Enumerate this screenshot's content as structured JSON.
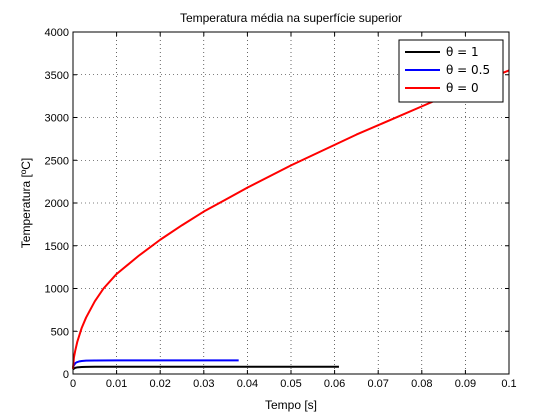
{
  "chart_data": {
    "type": "line",
    "title": "Temperatura média na superfície superior",
    "xlabel": "Tempo [s]",
    "ylabel": "Temperatura [ºC]",
    "xlim": [
      0,
      0.1
    ],
    "ylim": [
      0,
      4000
    ],
    "xticks": [
      0,
      0.01,
      0.02,
      0.03,
      0.04,
      0.05,
      0.06,
      0.07,
      0.08,
      0.09,
      0.1
    ],
    "xtick_labels": [
      "0",
      "0.01",
      "0.02",
      "0.03",
      "0.04",
      "0.05",
      "0.06",
      "0.07",
      "0.08",
      "0.09",
      "0.1"
    ],
    "yticks": [
      0,
      500,
      1000,
      1500,
      2000,
      2500,
      3000,
      3500,
      4000
    ],
    "ytick_labels": [
      "0",
      "500",
      "1000",
      "1500",
      "2000",
      "2500",
      "3000",
      "3500",
      "4000"
    ],
    "grid": true,
    "legend_position": "top-right",
    "series": [
      {
        "name": "θ = 1",
        "color": "#000000",
        "x": [
          0,
          0.0005,
          0.001,
          0.002,
          0.003,
          0.005,
          0.01,
          0.02,
          0.03,
          0.04,
          0.05,
          0.061
        ],
        "y": [
          55,
          72,
          78,
          82,
          84,
          85,
          85,
          85,
          85,
          85,
          85,
          85
        ]
      },
      {
        "name": "θ = 0.5",
        "color": "#0000ff",
        "x": [
          0,
          0.0003,
          0.0006,
          0.001,
          0.0015,
          0.002,
          0.003,
          0.005,
          0.01,
          0.02,
          0.03,
          0.038
        ],
        "y": [
          80,
          110,
          130,
          140,
          148,
          152,
          156,
          158,
          159,
          159,
          159,
          159
        ]
      },
      {
        "name": "θ = 0",
        "color": "#ff0000",
        "x": [
          0,
          0.0002,
          0.0005,
          0.001,
          0.002,
          0.003,
          0.005,
          0.007,
          0.01,
          0.015,
          0.02,
          0.025,
          0.03,
          0.035,
          0.04,
          0.045,
          0.05,
          0.055,
          0.06,
          0.065,
          0.07,
          0.075,
          0.08,
          0.085,
          0.09,
          0.095,
          0.1
        ],
        "y": [
          60,
          190,
          270,
          380,
          540,
          660,
          850,
          1000,
          1170,
          1380,
          1570,
          1740,
          1900,
          2040,
          2180,
          2310,
          2440,
          2560,
          2680,
          2800,
          2910,
          3020,
          3130,
          3240,
          3350,
          3450,
          3550
        ]
      }
    ]
  }
}
